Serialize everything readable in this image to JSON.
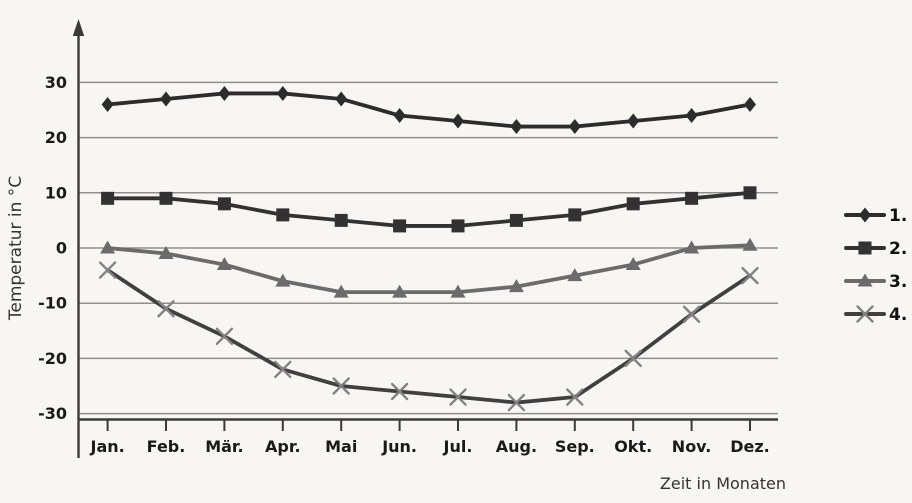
{
  "chart_data": {
    "type": "line",
    "title": "",
    "xlabel": "Zeit in Monaten",
    "ylabel": "Temperatur in °C",
    "categories": [
      "Jan.",
      "Feb.",
      "Mär.",
      "Apr.",
      "Mai",
      "Jun.",
      "Jul.",
      "Aug.",
      "Sep.",
      "Okt.",
      "Nov.",
      "Dez."
    ],
    "ylim": [
      -30,
      30
    ],
    "yticks": [
      30,
      20,
      10,
      0,
      -10,
      -20,
      -30
    ],
    "grid": true,
    "legend_position": "right",
    "series": [
      {
        "name": "1.",
        "marker": "diamond",
        "color": "#2c2c2c",
        "marker_color": "#2c2c2c",
        "values": [
          26,
          27,
          28,
          28,
          27,
          24,
          23,
          22,
          22,
          23,
          24,
          26
        ]
      },
      {
        "name": "2.",
        "marker": "square",
        "color": "#323232",
        "marker_color": "#323232",
        "values": [
          9,
          9,
          8,
          6,
          5,
          4,
          4,
          5,
          6,
          8,
          9,
          10
        ]
      },
      {
        "name": "3.",
        "marker": "triangle",
        "color": "#6b6b6b",
        "marker_color": "#6b6b6b",
        "values": [
          0,
          -1,
          -3,
          -6,
          -8,
          -8,
          -8,
          -7,
          -5,
          -3,
          0,
          0.5
        ]
      },
      {
        "name": "4.",
        "marker": "x",
        "color": "#404040",
        "marker_color": "#828282",
        "values": [
          -4,
          -11,
          -16,
          -22,
          -25,
          -26,
          -27,
          -28,
          -27,
          -20,
          -12,
          -5
        ]
      }
    ]
  },
  "colors": {
    "background": "#f7f6f3",
    "grid": "#909090",
    "axis": "#3a3a3a",
    "text": "#1a1a1a"
  }
}
